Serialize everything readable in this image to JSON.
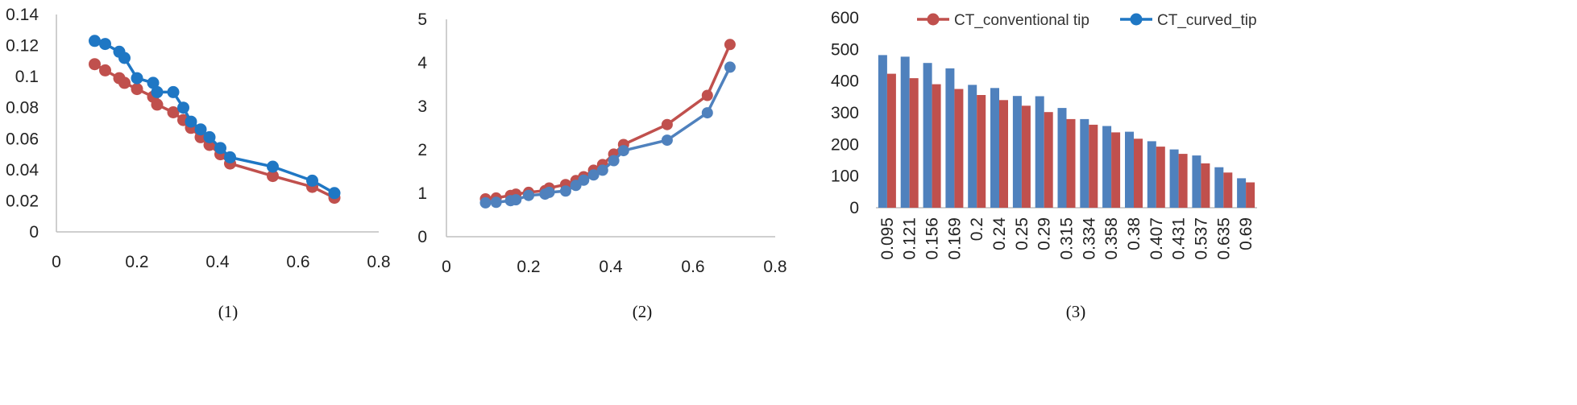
{
  "chart_data": [
    {
      "type": "line",
      "caption": "(1)",
      "xlim": [
        0,
        0.8
      ],
      "ylim": [
        0,
        0.14
      ],
      "x_ticks": [
        "0",
        "0.2",
        "0.4",
        "0.6",
        "0.8"
      ],
      "y_ticks": [
        "0",
        "0.02",
        "0.04",
        "0.06",
        "0.08",
        "0.1",
        "0.12",
        "0.14"
      ],
      "series": [
        {
          "color": "#c0504d",
          "x": [
            0.095,
            0.121,
            0.156,
            0.169,
            0.2,
            0.24,
            0.25,
            0.29,
            0.315,
            0.334,
            0.358,
            0.38,
            0.407,
            0.431,
            0.537,
            0.635,
            0.69
          ],
          "y": [
            0.108,
            0.104,
            0.099,
            0.096,
            0.092,
            0.087,
            0.082,
            0.077,
            0.072,
            0.067,
            0.061,
            0.056,
            0.05,
            0.044,
            0.036,
            0.029,
            0.022
          ]
        },
        {
          "color": "#1f77c4",
          "x": [
            0.095,
            0.121,
            0.156,
            0.169,
            0.2,
            0.24,
            0.25,
            0.29,
            0.315,
            0.334,
            0.358,
            0.38,
            0.407,
            0.431,
            0.537,
            0.635,
            0.69
          ],
          "y": [
            0.123,
            0.121,
            0.116,
            0.112,
            0.099,
            0.096,
            0.09,
            0.09,
            0.08,
            0.071,
            0.066,
            0.061,
            0.054,
            0.048,
            0.042,
            0.033,
            0.025
          ]
        }
      ]
    },
    {
      "type": "line",
      "caption": "(2)",
      "xlim": [
        0,
        0.8
      ],
      "ylim": [
        0,
        5
      ],
      "x_ticks": [
        "0",
        "0.2",
        "0.4",
        "0.6",
        "0.8"
      ],
      "y_ticks": [
        "0",
        "1",
        "2",
        "3",
        "4",
        "5"
      ],
      "series": [
        {
          "color": "#c0504d",
          "x": [
            0.095,
            0.121,
            0.156,
            0.169,
            0.2,
            0.24,
            0.25,
            0.29,
            0.315,
            0.334,
            0.358,
            0.38,
            0.407,
            0.431,
            0.537,
            0.635,
            0.69
          ],
          "y": [
            0.87,
            0.89,
            0.95,
            0.98,
            1.02,
            1.06,
            1.12,
            1.2,
            1.29,
            1.38,
            1.53,
            1.66,
            1.9,
            2.12,
            2.58,
            3.25,
            4.42
          ]
        },
        {
          "color": "#4f81bd",
          "x": [
            0.095,
            0.121,
            0.156,
            0.169,
            0.2,
            0.24,
            0.25,
            0.29,
            0.315,
            0.334,
            0.358,
            0.38,
            0.407,
            0.431,
            0.537,
            0.635,
            0.69
          ],
          "y": [
            0.78,
            0.79,
            0.83,
            0.85,
            0.95,
            0.98,
            1.02,
            1.05,
            1.18,
            1.3,
            1.42,
            1.53,
            1.75,
            1.98,
            2.22,
            2.85,
            3.9
          ]
        }
      ]
    },
    {
      "type": "bar",
      "caption": "(3)",
      "categories": [
        "0.095",
        "0.121",
        "0.156",
        "0.169",
        "0.2",
        "0.24",
        "0.25",
        "0.29",
        "0.315",
        "0.334",
        "0.358",
        "0.38",
        "0.407",
        "0.431",
        "0.537",
        "0.635",
        "0.69"
      ],
      "ylim": [
        0,
        600
      ],
      "y_ticks": [
        "0",
        "100",
        "200",
        "300",
        "400",
        "500",
        "600"
      ],
      "legend_position": "top-right",
      "series": [
        {
          "name": "CT_curved_tip",
          "color": "#4f81bd",
          "values": [
            482,
            477,
            457,
            440,
            388,
            378,
            353,
            352,
            315,
            280,
            258,
            240,
            210,
            184,
            165,
            128,
            93
          ]
        },
        {
          "name": "CT_conventional tip",
          "color": "#c0504d",
          "values": [
            423,
            409,
            390,
            375,
            356,
            340,
            322,
            302,
            280,
            262,
            238,
            218,
            193,
            170,
            140,
            111,
            80
          ]
        }
      ],
      "legend": [
        {
          "label": "CT_conventional tip",
          "color": "#c0504d"
        },
        {
          "label": "CT_curved_tip",
          "color": "#1f77c4"
        }
      ]
    }
  ]
}
